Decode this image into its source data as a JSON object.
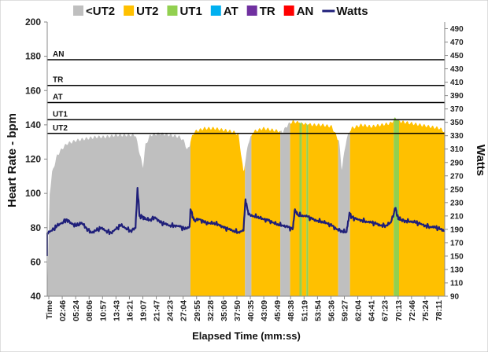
{
  "chart_data": {
    "type": "area",
    "title": "",
    "xlabel": "Elapsed Time (mm:ss)",
    "ylabel": "Heart Rate - bpm",
    "y2label": "Watts",
    "ylim": [
      40,
      200
    ],
    "y2lim": [
      90,
      500
    ],
    "x_range_minutes": [
      0,
      81
    ],
    "left_ticks": [
      "40",
      "60",
      "80",
      "100",
      "120",
      "140",
      "160",
      "180",
      "200"
    ],
    "right_ticks": [
      "90",
      "110",
      "130",
      "150",
      "170",
      "190",
      "210",
      "230",
      "250",
      "270",
      "290",
      "310",
      "330",
      "350",
      "370",
      "390",
      "410",
      "430",
      "450",
      "470",
      "490"
    ],
    "x_ticks": [
      "Time",
      "02:46",
      "05:24",
      "08:06",
      "10:57",
      "13:43",
      "16:21",
      "19:07",
      "21:47",
      "24:23",
      "27:04",
      "29:55",
      "32:28",
      "35:06",
      "37:50",
      "40:35",
      "43:09",
      "45:49",
      "48:38",
      "51:19",
      "53:54",
      "56:36",
      "59:27",
      "62:04",
      "64:41",
      "67:23",
      "70:13",
      "72:46",
      "75:24",
      "78:11"
    ],
    "legend": [
      {
        "name": "<UT2",
        "color": "#BFBFBF",
        "kind": "area"
      },
      {
        "name": "UT2",
        "color": "#FFC000",
        "kind": "area"
      },
      {
        "name": "UT1",
        "color": "#92D050",
        "kind": "area"
      },
      {
        "name": "AT",
        "color": "#00B0F0",
        "kind": "area"
      },
      {
        "name": "TR",
        "color": "#7030A0",
        "kind": "area"
      },
      {
        "name": "AN",
        "color": "#FF0000",
        "kind": "area"
      },
      {
        "name": "Watts",
        "color": "#1F1F7A",
        "kind": "line"
      }
    ],
    "zone_thresholds": [
      {
        "name": "UT2",
        "bpm": 135
      },
      {
        "name": "UT1",
        "bpm": 143
      },
      {
        "name": "AT",
        "bpm": 153
      },
      {
        "name": "TR",
        "bpm": 163
      },
      {
        "name": "AN",
        "bpm": 178
      }
    ],
    "heart_rate": {
      "x_minutes": [
        0,
        0.5,
        1,
        2,
        3,
        4,
        6,
        8,
        10,
        12,
        14,
        16,
        18,
        19.5,
        20,
        21,
        23,
        25,
        27,
        28,
        28.5,
        29,
        29.5,
        30,
        32,
        34,
        36,
        38,
        39,
        40,
        41,
        42,
        44,
        46,
        48,
        49,
        50,
        52,
        54,
        56,
        58,
        59.5,
        60,
        61,
        62,
        64,
        66,
        68,
        70,
        71,
        72,
        74,
        76,
        78,
        80,
        81
      ],
      "values": [
        40,
        100,
        112,
        122,
        126,
        129,
        131,
        132,
        133,
        133,
        134,
        134,
        134,
        115,
        128,
        134,
        135,
        134,
        133,
        130,
        125,
        128,
        133,
        136,
        138,
        138,
        137,
        136,
        134,
        112,
        130,
        136,
        138,
        137,
        136,
        140,
        142,
        141,
        140,
        140,
        139,
        130,
        114,
        132,
        138,
        140,
        139,
        140,
        141,
        144,
        142,
        141,
        140,
        139,
        138,
        136
      ]
    },
    "zone_segments": [
      {
        "zone": "<UT2",
        "start": 0,
        "end": 29.2
      },
      {
        "zone": "UT2",
        "start": 29.2,
        "end": 40.3
      },
      {
        "zone": "<UT2",
        "start": 40.3,
        "end": 41.6
      },
      {
        "zone": "UT2",
        "start": 41.6,
        "end": 47.5
      },
      {
        "zone": "<UT2",
        "start": 47.5,
        "end": 49.5
      },
      {
        "zone": "UT2",
        "start": 49.5,
        "end": 51.4
      },
      {
        "zone": "UT1",
        "start": 51.4,
        "end": 51.9
      },
      {
        "zone": "UT2",
        "start": 51.9,
        "end": 52.8
      },
      {
        "zone": "UT1",
        "start": 52.8,
        "end": 53.2
      },
      {
        "zone": "UT2",
        "start": 53.2,
        "end": 59.3
      },
      {
        "zone": "<UT2",
        "start": 59.3,
        "end": 61.7
      },
      {
        "zone": "UT2",
        "start": 61.7,
        "end": 70.6
      },
      {
        "zone": "UT1",
        "start": 70.6,
        "end": 71.7
      },
      {
        "zone": "UT2",
        "start": 71.7,
        "end": 81
      }
    ],
    "watts": {
      "x_minutes": [
        0,
        1,
        2,
        3,
        4,
        5,
        6,
        7,
        8,
        9,
        10,
        11,
        12,
        13,
        14,
        15,
        16,
        17,
        18,
        18.4,
        18.8,
        19.5,
        20,
        21,
        22,
        23,
        24,
        25,
        26,
        27,
        28,
        29,
        29.2,
        29.7,
        30,
        31,
        32,
        33,
        34,
        35,
        36,
        37,
        38,
        39,
        40,
        40.4,
        41,
        42,
        43,
        44,
        45,
        46,
        47,
        48,
        49,
        50,
        50.5,
        51,
        52,
        53,
        54,
        55,
        56,
        57,
        58,
        59,
        60,
        61,
        61.6,
        62,
        63,
        64,
        65,
        66,
        67,
        68,
        69,
        70,
        71,
        71.3,
        72,
        73,
        74,
        75,
        76,
        77,
        78,
        79,
        80,
        81
      ],
      "values": [
        185,
        188,
        195,
        200,
        205,
        198,
        195,
        200,
        192,
        185,
        188,
        192,
        188,
        185,
        190,
        196,
        192,
        188,
        192,
        252,
        210,
        208,
        205,
        205,
        208,
        200,
        198,
        196,
        196,
        194,
        190,
        194,
        220,
        208,
        204,
        205,
        200,
        199,
        200,
        197,
        192,
        190,
        188,
        186,
        188,
        235,
        212,
        210,
        209,
        205,
        203,
        200,
        198,
        196,
        193,
        190,
        220,
        212,
        211,
        209,
        205,
        203,
        202,
        199,
        195,
        190,
        188,
        186,
        215,
        208,
        205,
        204,
        202,
        200,
        198,
        196,
        196,
        200,
        222,
        210,
        204,
        203,
        202,
        200,
        198,
        196,
        194,
        193,
        190,
        188
      ]
    }
  }
}
